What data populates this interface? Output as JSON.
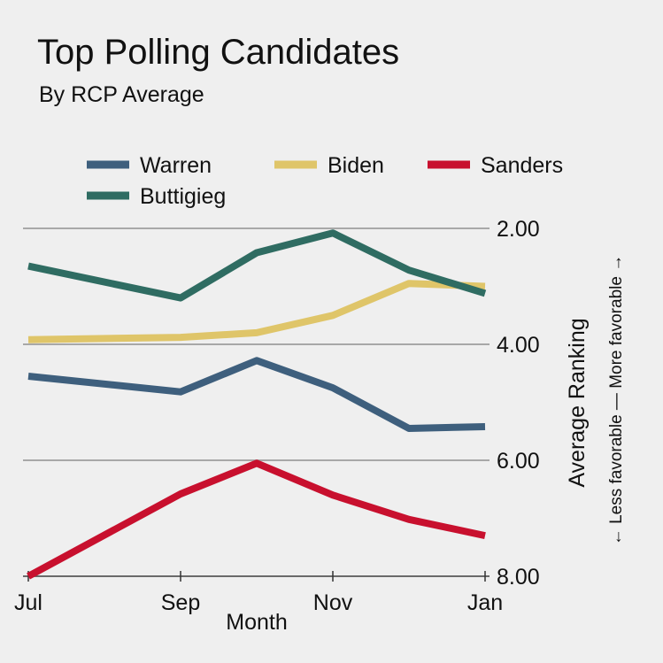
{
  "chart_data": {
    "type": "line",
    "title": "Top Polling Candidates",
    "subtitle": "By RCP Average",
    "xlabel": "Month",
    "ylabel": "Average Ranking",
    "ylabel_note": "← Less favorable — More favorable →",
    "x": [
      0,
      2,
      3,
      4,
      5,
      6
    ],
    "x_ticks": [
      {
        "x": 0,
        "label": "Jul"
      },
      {
        "x": 2,
        "label": "Sep"
      },
      {
        "x": 4,
        "label": "Nov"
      },
      {
        "x": 6,
        "label": "Jan"
      }
    ],
    "xlim": [
      0,
      6
    ],
    "ylim": [
      8,
      2
    ],
    "y_ticks": [
      "2.00",
      "4.00",
      "6.00",
      "8.00"
    ],
    "y_tick_values": [
      2,
      4,
      6,
      8
    ],
    "y_inverted": true,
    "grid": "horizontal",
    "legend_position": "top",
    "series": [
      {
        "name": "Warren",
        "color": "#3e5f7d",
        "values": [
          4.55,
          4.82,
          4.28,
          4.75,
          5.45,
          5.42
        ]
      },
      {
        "name": "Biden",
        "color": "#dfc569",
        "values": [
          3.92,
          3.88,
          3.8,
          3.5,
          2.95,
          3.0
        ]
      },
      {
        "name": "Sanders",
        "color": "#c8102e",
        "values": [
          8.0,
          6.58,
          6.05,
          6.6,
          7.02,
          7.3
        ]
      },
      {
        "name": "Buttigieg",
        "color": "#2f6c62",
        "values": [
          2.65,
          3.2,
          2.42,
          2.08,
          2.72,
          3.12
        ]
      }
    ]
  }
}
